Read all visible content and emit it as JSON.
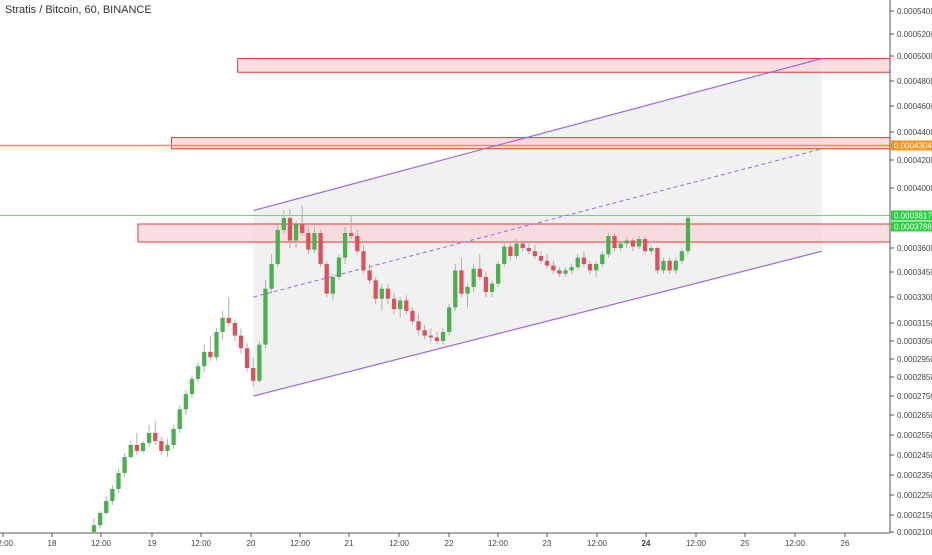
{
  "title": "Stratis / Bitcoin, 60, BINANCE",
  "colors": {
    "up": "#4caf50",
    "down": "#e0505a",
    "channel": "#9c6ade",
    "zone_fill": "#f8d7da",
    "zone_stroke": "#e53935",
    "orange_line": "#f7931a",
    "green_line": "#66cc66",
    "channel_fill": "#e5e5e5",
    "axis_text": "#444444"
  },
  "chart_data": {
    "type": "candlestick",
    "title": "Stratis / Bitcoin, 60, BINANCE",
    "x_axis": {
      "ticks": [
        "12:00",
        "18",
        "12:00",
        "19",
        "12:00",
        "20",
        "12:00",
        "21",
        "12:00",
        "22",
        "12:00",
        "23",
        "12:00",
        "24",
        "12:00",
        "25",
        "12:00",
        "26"
      ],
      "bold_tick": "24"
    },
    "y_axis": {
      "ticks": [
        "0.0005400",
        "0.0005200",
        "0.0005000",
        "0.0004800",
        "0.0004600",
        "0.0004400",
        "0.0004200",
        "0.0004000",
        "0.0003600",
        "0.0003450",
        "0.0003300",
        "0.0003150",
        "0.0003050",
        "0.0002950",
        "0.0002850",
        "0.0002750",
        "0.0002650",
        "0.0002550",
        "0.0002450",
        "0.0002350",
        "0.0002250",
        "0.0002150",
        "0.0002100"
      ]
    },
    "price_labels": {
      "orange": "0.0004304",
      "current_1": "0.0003817",
      "current_2": "0.0003788"
    },
    "candles": [
      {
        "o": 0.00021,
        "h": 0.000214,
        "l": 0.000209,
        "c": 0.000212
      },
      {
        "o": 0.000212,
        "h": 0.000217,
        "l": 0.000211,
        "c": 0.000216
      },
      {
        "o": 0.000216,
        "h": 0.000224,
        "l": 0.000215,
        "c": 0.000222
      },
      {
        "o": 0.000222,
        "h": 0.00023,
        "l": 0.00022,
        "c": 0.000228
      },
      {
        "o": 0.000228,
        "h": 0.000238,
        "l": 0.000226,
        "c": 0.000236
      },
      {
        "o": 0.000236,
        "h": 0.000246,
        "l": 0.000234,
        "c": 0.000244
      },
      {
        "o": 0.000244,
        "h": 0.000252,
        "l": 0.000243,
        "c": 0.00025
      },
      {
        "o": 0.00025,
        "h": 0.000256,
        "l": 0.000245,
        "c": 0.000247
      },
      {
        "o": 0.000247,
        "h": 0.000252,
        "l": 0.000246,
        "c": 0.000251
      },
      {
        "o": 0.000251,
        "h": 0.00026,
        "l": 0.000249,
        "c": 0.000256
      },
      {
        "o": 0.000256,
        "h": 0.000262,
        "l": 0.00025,
        "c": 0.000252
      },
      {
        "o": 0.000252,
        "h": 0.000254,
        "l": 0.000245,
        "c": 0.000247
      },
      {
        "o": 0.000247,
        "h": 0.000253,
        "l": 0.000244,
        "c": 0.00025
      },
      {
        "o": 0.00025,
        "h": 0.00026,
        "l": 0.000248,
        "c": 0.000258
      },
      {
        "o": 0.000258,
        "h": 0.00027,
        "l": 0.000256,
        "c": 0.000268
      },
      {
        "o": 0.000268,
        "h": 0.000278,
        "l": 0.000265,
        "c": 0.000276
      },
      {
        "o": 0.000276,
        "h": 0.000286,
        "l": 0.000274,
        "c": 0.000284
      },
      {
        "o": 0.000284,
        "h": 0.000293,
        "l": 0.000282,
        "c": 0.000291
      },
      {
        "o": 0.000291,
        "h": 0.000303,
        "l": 0.000288,
        "c": 0.000299
      },
      {
        "o": 0.000299,
        "h": 0.000308,
        "l": 0.000294,
        "c": 0.000296
      },
      {
        "o": 0.000296,
        "h": 0.000312,
        "l": 0.000294,
        "c": 0.00031
      },
      {
        "o": 0.00031,
        "h": 0.000322,
        "l": 0.000306,
        "c": 0.000318
      },
      {
        "o": 0.000318,
        "h": 0.00033,
        "l": 0.000313,
        "c": 0.000315
      },
      {
        "o": 0.000315,
        "h": 0.000317,
        "l": 0.000305,
        "c": 0.000308
      },
      {
        "o": 0.000308,
        "h": 0.000312,
        "l": 0.000298,
        "c": 0.000301
      },
      {
        "o": 0.000301,
        "h": 0.000304,
        "l": 0.000288,
        "c": 0.00029
      },
      {
        "o": 0.00029,
        "h": 0.000296,
        "l": 0.00028,
        "c": 0.000283
      },
      {
        "o": 0.000283,
        "h": 0.000305,
        "l": 0.000282,
        "c": 0.000303
      },
      {
        "o": 0.000303,
        "h": 0.00034,
        "l": 0.000301,
        "c": 0.000335
      },
      {
        "o": 0.000335,
        "h": 0.000356,
        "l": 0.000332,
        "c": 0.00035
      },
      {
        "o": 0.00035,
        "h": 0.000376,
        "l": 0.000348,
        "c": 0.000372
      },
      {
        "o": 0.000372,
        "h": 0.000385,
        "l": 0.00037,
        "c": 0.00038
      },
      {
        "o": 0.00038,
        "h": 0.000386,
        "l": 0.00036,
        "c": 0.000365
      },
      {
        "o": 0.000365,
        "h": 0.000378,
        "l": 0.00036,
        "c": 0.000376
      },
      {
        "o": 0.000376,
        "h": 0.000388,
        "l": 0.000368,
        "c": 0.00037
      },
      {
        "o": 0.00037,
        "h": 0.000374,
        "l": 0.000356,
        "c": 0.000359
      },
      {
        "o": 0.000359,
        "h": 0.000374,
        "l": 0.000357,
        "c": 0.00037
      },
      {
        "o": 0.00037,
        "h": 0.000372,
        "l": 0.000348,
        "c": 0.00035
      },
      {
        "o": 0.00035,
        "h": 0.000352,
        "l": 0.00033,
        "c": 0.000332
      },
      {
        "o": 0.000332,
        "h": 0.000344,
        "l": 0.000328,
        "c": 0.000342
      },
      {
        "o": 0.000342,
        "h": 0.000356,
        "l": 0.00034,
        "c": 0.000354
      },
      {
        "o": 0.000354,
        "h": 0.000374,
        "l": 0.00035,
        "c": 0.00037
      },
      {
        "o": 0.00037,
        "h": 0.000382,
        "l": 0.000366,
        "c": 0.000368
      },
      {
        "o": 0.000368,
        "h": 0.000372,
        "l": 0.000356,
        "c": 0.000358
      },
      {
        "o": 0.000358,
        "h": 0.000362,
        "l": 0.000344,
        "c": 0.000346
      },
      {
        "o": 0.000346,
        "h": 0.00035,
        "l": 0.000338,
        "c": 0.00034
      },
      {
        "o": 0.00034,
        "h": 0.000342,
        "l": 0.000326,
        "c": 0.000329
      },
      {
        "o": 0.000329,
        "h": 0.000338,
        "l": 0.000322,
        "c": 0.000335
      },
      {
        "o": 0.000335,
        "h": 0.000338,
        "l": 0.000326,
        "c": 0.000329
      },
      {
        "o": 0.000329,
        "h": 0.000332,
        "l": 0.00032,
        "c": 0.000323
      },
      {
        "o": 0.000323,
        "h": 0.00033,
        "l": 0.000318,
        "c": 0.000328
      },
      {
        "o": 0.000328,
        "h": 0.000331,
        "l": 0.00032,
        "c": 0.000322
      },
      {
        "o": 0.000322,
        "h": 0.000324,
        "l": 0.000314,
        "c": 0.000316
      },
      {
        "o": 0.000316,
        "h": 0.00032,
        "l": 0.000308,
        "c": 0.000311
      },
      {
        "o": 0.000311,
        "h": 0.000314,
        "l": 0.000306,
        "c": 0.000308
      },
      {
        "o": 0.000308,
        "h": 0.000312,
        "l": 0.000304,
        "c": 0.000307
      },
      {
        "o": 0.000307,
        "h": 0.00031,
        "l": 0.000303,
        "c": 0.000305
      },
      {
        "o": 0.000305,
        "h": 0.000312,
        "l": 0.000303,
        "c": 0.00031
      },
      {
        "o": 0.00031,
        "h": 0.000326,
        "l": 0.000308,
        "c": 0.000324
      },
      {
        "o": 0.000324,
        "h": 0.00035,
        "l": 0.000322,
        "c": 0.000346
      },
      {
        "o": 0.000346,
        "h": 0.000354,
        "l": 0.00033,
        "c": 0.000332
      },
      {
        "o": 0.000332,
        "h": 0.000338,
        "l": 0.000324,
        "c": 0.000336
      },
      {
        "o": 0.000336,
        "h": 0.00035,
        "l": 0.000333,
        "c": 0.000347
      },
      {
        "o": 0.000347,
        "h": 0.000356,
        "l": 0.00034,
        "c": 0.000342
      },
      {
        "o": 0.000342,
        "h": 0.000345,
        "l": 0.00033,
        "c": 0.000333
      },
      {
        "o": 0.000333,
        "h": 0.00034,
        "l": 0.00033,
        "c": 0.000338
      },
      {
        "o": 0.000338,
        "h": 0.000352,
        "l": 0.000336,
        "c": 0.00035
      },
      {
        "o": 0.00035,
        "h": 0.000364,
        "l": 0.000348,
        "c": 0.000361
      },
      {
        "o": 0.000361,
        "h": 0.000364,
        "l": 0.000352,
        "c": 0.000355
      },
      {
        "o": 0.000355,
        "h": 0.000366,
        "l": 0.000353,
        "c": 0.000363
      },
      {
        "o": 0.000363,
        "h": 0.000365,
        "l": 0.000358,
        "c": 0.00036
      },
      {
        "o": 0.00036,
        "h": 0.000364,
        "l": 0.000356,
        "c": 0.000358
      },
      {
        "o": 0.000358,
        "h": 0.000362,
        "l": 0.000353,
        "c": 0.000355
      },
      {
        "o": 0.000355,
        "h": 0.000358,
        "l": 0.00035,
        "c": 0.000352
      },
      {
        "o": 0.000352,
        "h": 0.000356,
        "l": 0.000347,
        "c": 0.000349
      },
      {
        "o": 0.000349,
        "h": 0.000352,
        "l": 0.000344,
        "c": 0.000346
      },
      {
        "o": 0.000346,
        "h": 0.000348,
        "l": 0.000342,
        "c": 0.000344
      },
      {
        "o": 0.000344,
        "h": 0.000348,
        "l": 0.000342,
        "c": 0.000346
      },
      {
        "o": 0.000346,
        "h": 0.00035,
        "l": 0.000344,
        "c": 0.000348
      },
      {
        "o": 0.000348,
        "h": 0.000356,
        "l": 0.000346,
        "c": 0.000354
      },
      {
        "o": 0.000354,
        "h": 0.000358,
        "l": 0.000348,
        "c": 0.00035
      },
      {
        "o": 0.00035,
        "h": 0.000352,
        "l": 0.000344,
        "c": 0.000346
      },
      {
        "o": 0.000346,
        "h": 0.000352,
        "l": 0.000342,
        "c": 0.00035
      },
      {
        "o": 0.00035,
        "h": 0.000358,
        "l": 0.000348,
        "c": 0.000356
      },
      {
        "o": 0.000356,
        "h": 0.00037,
        "l": 0.000354,
        "c": 0.000368
      },
      {
        "o": 0.000368,
        "h": 0.00037,
        "l": 0.000358,
        "c": 0.00036
      },
      {
        "o": 0.00036,
        "h": 0.000365,
        "l": 0.000358,
        "c": 0.000363
      },
      {
        "o": 0.000363,
        "h": 0.000367,
        "l": 0.00036,
        "c": 0.000365
      },
      {
        "o": 0.000365,
        "h": 0.000367,
        "l": 0.000358,
        "c": 0.000361
      },
      {
        "o": 0.000361,
        "h": 0.000368,
        "l": 0.000359,
        "c": 0.000366
      },
      {
        "o": 0.000366,
        "h": 0.000368,
        "l": 0.000356,
        "c": 0.000358
      },
      {
        "o": 0.000358,
        "h": 0.000362,
        "l": 0.000356,
        "c": 0.00036
      },
      {
        "o": 0.00036,
        "h": 0.000361,
        "l": 0.000344,
        "c": 0.000346
      },
      {
        "o": 0.000346,
        "h": 0.000354,
        "l": 0.000344,
        "c": 0.000352
      },
      {
        "o": 0.000352,
        "h": 0.000354,
        "l": 0.000344,
        "c": 0.000346
      },
      {
        "o": 0.000346,
        "h": 0.000354,
        "l": 0.000344,
        "c": 0.000352
      },
      {
        "o": 0.000352,
        "h": 0.00036,
        "l": 0.00035,
        "c": 0.000358
      },
      {
        "o": 0.000358,
        "h": 0.000382,
        "l": 0.000356,
        "c": 0.00038
      }
    ],
    "annotations": {
      "channel": {
        "x1_pct": 0.272,
        "y_top_start": 0.000385,
        "y_bot_start": 0.000275,
        "x2_pct": 0.882,
        "y_top_end": 0.000498,
        "y_bot_end": 0.000358
      },
      "zones": [
        {
          "x_start_pct": 0.255,
          "top": 0.000498,
          "bottom": 0.000487
        },
        {
          "x_start_pct": 0.184,
          "top": 0.000436,
          "bottom": 0.000428
        },
        {
          "x_start_pct": 0.148,
          "top": 0.000376,
          "bottom": 0.000364
        }
      ],
      "orange_level": 0.0004304,
      "green_level": 0.0003817
    }
  }
}
